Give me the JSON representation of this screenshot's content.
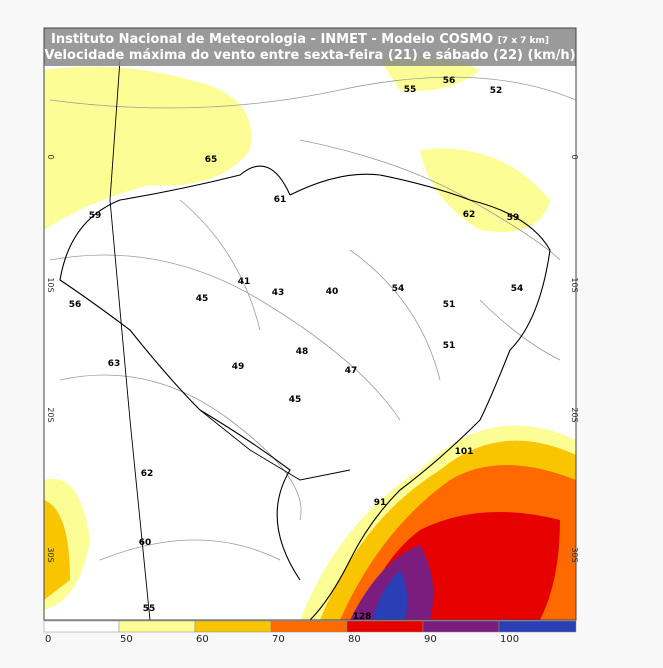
{
  "header": {
    "title": "Instituto Nacional de Meteorologia - INMET - Modelo COSMO",
    "resolution": "[7 x 7 km]",
    "subtitle": "Velocidade máxima do vento entre sexta-feira (21) e sábado (22) (km/h)"
  },
  "map_labels": [
    "55",
    "56",
    "52",
    "65",
    "61",
    "59",
    "62",
    "59",
    "56",
    "45",
    "41",
    "43",
    "40",
    "54",
    "51",
    "54",
    "63",
    "48",
    "49",
    "47",
    "51",
    "45",
    "62",
    "101",
    "91",
    "60",
    "55",
    "128"
  ],
  "latitude_labels": [
    "0",
    "10S",
    "20S",
    "30S"
  ],
  "colorbar": {
    "labels": [
      "0",
      "50",
      "60",
      "70",
      "80",
      "90",
      "100"
    ]
  }
}
